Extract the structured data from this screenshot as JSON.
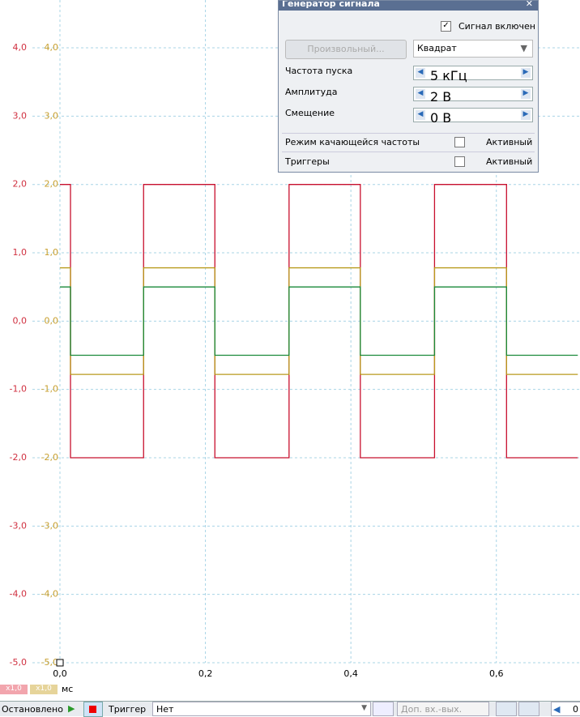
{
  "chart_data": {
    "type": "line",
    "x": [
      0,
      0.0145,
      0.0145,
      0.115,
      0.115,
      0.213,
      0.213,
      0.315,
      0.315,
      0.413,
      0.413,
      0.515,
      0.515,
      0.614,
      0.614,
      0.712
    ],
    "series": [
      {
        "color": "#c8102e",
        "values": [
          2,
          2,
          -2,
          -2,
          2,
          2,
          -2,
          -2,
          2,
          2,
          -2,
          -2,
          2,
          2,
          -2,
          -2
        ]
      },
      {
        "color": "#b89a1c",
        "values": [
          0.78,
          0.78,
          -0.78,
          -0.78,
          0.78,
          0.78,
          -0.78,
          -0.78,
          0.78,
          0.78,
          -0.78,
          -0.78,
          0.78,
          0.78,
          -0.78,
          -0.78
        ]
      },
      {
        "color": "#1a8a3a",
        "values": [
          0.5,
          0.5,
          -0.5,
          -0.5,
          0.5,
          0.5,
          -0.5,
          -0.5,
          0.5,
          0.5,
          -0.5,
          -0.5,
          0.5,
          0.5,
          -0.5,
          -0.5
        ]
      }
    ],
    "xlim": [
      0,
      0.715
    ],
    "ylim": [
      -5,
      4.7
    ],
    "y2lim": [
      -5,
      4.7
    ],
    "xticks": [
      {
        "value": 0,
        "label": "0,0"
      },
      {
        "value": 0.2,
        "label": "0,2"
      },
      {
        "value": 0.4,
        "label": "0,4"
      },
      {
        "value": 0.6,
        "label": "0,6"
      }
    ],
    "yticks": [
      {
        "value": 4,
        "label": "4,0"
      },
      {
        "value": 3,
        "label": "3,0"
      },
      {
        "value": 2,
        "label": "2,0"
      },
      {
        "value": 1,
        "label": "1,0"
      },
      {
        "value": 0,
        "label": "0,0"
      },
      {
        "value": -1,
        "label": "-1,0"
      },
      {
        "value": -2,
        "label": "-2,0"
      },
      {
        "value": -3,
        "label": "-3,0"
      },
      {
        "value": -4,
        "label": "-4,0"
      },
      {
        "value": -5,
        "label": "-5,0"
      }
    ],
    "y2ticks": [
      {
        "value": 4,
        "label": "4,0"
      },
      {
        "value": 3,
        "label": "3,0"
      },
      {
        "value": 2,
        "label": "2,0"
      },
      {
        "value": 1,
        "label": "1,0"
      },
      {
        "value": 0,
        "label": "0,0"
      },
      {
        "value": -1,
        "label": "-1,0"
      },
      {
        "value": -2,
        "label": "-2,0"
      },
      {
        "value": -3,
        "label": "-3,0"
      },
      {
        "value": -4,
        "label": "-4,0"
      },
      {
        "value": -5,
        "label": "-5,0"
      }
    ],
    "ycolor": "#d03040",
    "y2color": "#c8a030",
    "grid": true,
    "x_unit": "мс",
    "scale_a": "x1,0",
    "scale_b": "x1,0"
  },
  "signal_generator": {
    "title": "Генератор сигнала",
    "enabled_label": "Сигнал включен",
    "arbitrary_button": "Произвольный...",
    "waveform": "Квадрат",
    "rows": [
      [
        "Частота пуска",
        "5 кГц"
      ],
      [
        "Амплитуда",
        "2 В"
      ],
      [
        "Смещение",
        "0 В"
      ]
    ],
    "sweep": [
      "Режим качающейся частоты",
      "Активный"
    ],
    "triggers": [
      "Триггеры",
      "Активный"
    ]
  },
  "status_bar": {
    "state": "Остановлено",
    "trigger_label": "Триггер",
    "trigger_value": "Нет",
    "aux_io": "Доп. вх.-вых.",
    "right_value": "0"
  }
}
